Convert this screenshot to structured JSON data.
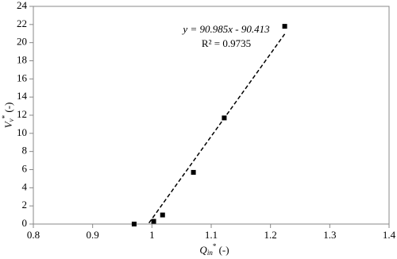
{
  "chart_data": {
    "type": "scatter",
    "x": [
      0.97,
      1.003,
      1.018,
      1.07,
      1.122,
      1.224
    ],
    "values": [
      0,
      0.3,
      1.0,
      5.7,
      11.7,
      21.8
    ],
    "color": "#000000",
    "xlim": [
      0.8,
      1.4
    ],
    "xticks": [
      0.8,
      0.9,
      1,
      1.1,
      1.2,
      1.3,
      1.4
    ],
    "ylim": [
      0,
      24
    ],
    "yticks": [
      0,
      2,
      4,
      6,
      8,
      10,
      12,
      14,
      16,
      18,
      20,
      22,
      24
    ],
    "x_label": [
      "Q",
      "in",
      "*",
      " (-)"
    ],
    "y_label": [
      "V",
      "v",
      "*",
      " (-)"
    ],
    "trendline": {
      "slope": 90.985,
      "intercept": -90.413,
      "style": "dashed"
    },
    "annotations": [
      "y = 90.985x - 90.413",
      "R² = 0.9735"
    ]
  }
}
